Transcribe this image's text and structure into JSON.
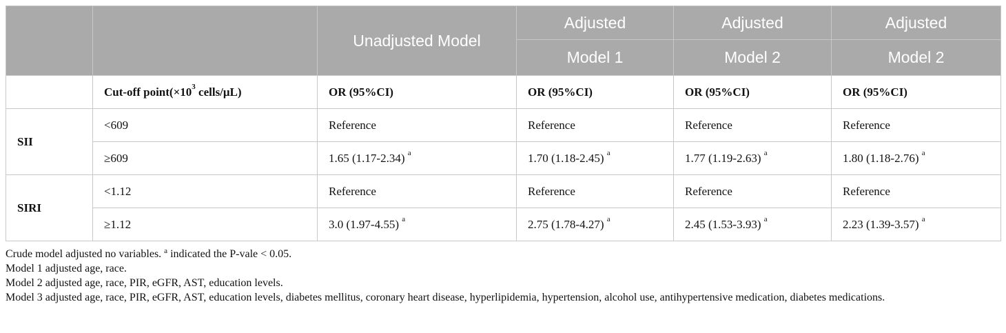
{
  "header": {
    "unadjusted": "Unadjusted Model",
    "adjusted_top": "Adjusted",
    "model1": "Model 1",
    "model2a": "Model 2",
    "model2b": "Model 2"
  },
  "subheader": {
    "cutoff_prefix": "Cut-off point(×10",
    "cutoff_exp": "3",
    "cutoff_suffix": " cells/μL)",
    "or_label": "OR (95%CI)"
  },
  "superscript_marker": "a",
  "groups": [
    {
      "name": "SII",
      "rows": [
        {
          "cutoff": "<609",
          "values": [
            "Reference",
            "Reference",
            "Reference",
            "Reference"
          ],
          "sig": [
            false,
            false,
            false,
            false
          ]
        },
        {
          "cutoff": "≥609",
          "values": [
            "1.65 (1.17-2.34)",
            "1.70 (1.18-2.45)",
            "1.77 (1.19-2.63)",
            "1.80 (1.18-2.76)"
          ],
          "sig": [
            true,
            true,
            true,
            true
          ]
        }
      ]
    },
    {
      "name": "SIRI",
      "rows": [
        {
          "cutoff": "<1.12",
          "values": [
            "Reference",
            "Reference",
            "Reference",
            "Reference"
          ],
          "sig": [
            false,
            false,
            false,
            false
          ]
        },
        {
          "cutoff": "≥1.12",
          "values": [
            "3.0 (1.97-4.55)",
            "2.75 (1.78-4.27)",
            "2.45 (1.53-3.93)",
            "2.23 (1.39-3.57)"
          ],
          "sig": [
            true,
            true,
            true,
            true
          ]
        }
      ]
    }
  ],
  "notes": {
    "line1_a": "Crude model adjusted no variables. ",
    "line1_sup": "a",
    "line1_b": " indicated the P-vale < 0.05.",
    "line2": "Model 1 adjusted age, race.",
    "line3": "Model 2 adjusted age, race, PIR, eGFR, AST, education levels.",
    "line4": "Model 3 adjusted age, race, PIR, eGFR, AST, education levels, diabetes mellitus, coronary heart disease, hyperlipidemia, hypertension, alcohol use, antihypertensive medication, diabetes medications."
  }
}
